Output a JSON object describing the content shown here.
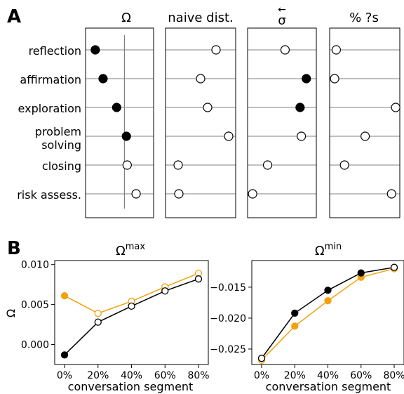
{
  "panel_labels": [
    "A",
    "B"
  ],
  "chart_data": [
    {
      "type": "scatter",
      "panel": "A",
      "categories": [
        "reflection",
        "affirmation",
        "exploration",
        "problem\nsolving",
        "closing",
        "risk assess."
      ],
      "subplots": [
        {
          "title": "Ω",
          "values": [
            -0.75,
            -0.55,
            -0.2,
            0.05,
            0.07,
            0.3
          ],
          "filled": [
            true,
            true,
            true,
            true,
            false,
            false
          ],
          "xlim": [
            -1.0,
            0.75
          ],
          "reference_x": 0.0
        },
        {
          "title": "naive dist.",
          "values": [
            0.72,
            0.5,
            0.6,
            0.9,
            0.18,
            0.19
          ],
          "filled": [
            false,
            false,
            false,
            false,
            false,
            false
          ],
          "xlim": [
            0.0,
            1.0
          ]
        },
        {
          "title": "σ",
          "title_accent": "←",
          "values": [
            0.4,
            0.57,
            0.52,
            0.53,
            0.26,
            0.14
          ],
          "filled": [
            false,
            true,
            true,
            false,
            false,
            false
          ],
          "xlim": [
            0.1,
            0.65
          ]
        },
        {
          "title": "% ?s",
          "values": [
            0.08,
            0.06,
            0.8,
            0.43,
            0.18,
            0.75
          ],
          "filled": [
            false,
            false,
            false,
            false,
            false,
            false
          ],
          "xlim": [
            0.0,
            0.85
          ]
        }
      ]
    },
    {
      "type": "line",
      "panel": "B",
      "title": "Ω",
      "title_superscript": "max",
      "x": [
        "0%",
        "20%",
        "40%",
        "60%",
        "80%"
      ],
      "xlabel": "conversation segment",
      "ylabel": "Ω",
      "ylim": [
        -0.0025,
        0.0105
      ],
      "yticks": [
        "0.000",
        "0.005",
        "0.010"
      ],
      "ytick_values": [
        0.0,
        0.005,
        0.01
      ],
      "series": [
        {
          "color": "#000000",
          "values": [
            -0.0013,
            0.0028,
            0.0048,
            0.0067,
            0.0082
          ],
          "filled": [
            true,
            false,
            false,
            false,
            false
          ]
        },
        {
          "color": "#f2a20f",
          "values": [
            0.0061,
            0.0039,
            0.0054,
            0.0072,
            0.0089
          ],
          "filled": [
            true,
            false,
            false,
            false,
            false
          ]
        }
      ]
    },
    {
      "type": "line",
      "panel": "B",
      "title": "Ω",
      "title_superscript": "min",
      "x": [
        "0%",
        "20%",
        "40%",
        "60%",
        "80%"
      ],
      "xlabel": "conversation segment",
      "ylim": [
        -0.0275,
        -0.0107
      ],
      "yticks": [
        "−0.025",
        "−0.020",
        "−0.015"
      ],
      "ytick_values": [
        -0.025,
        -0.02,
        -0.015
      ],
      "series": [
        {
          "color": "#000000",
          "values": [
            -0.0265,
            -0.0192,
            -0.0155,
            -0.0127,
            -0.0118
          ],
          "filled": [
            false,
            true,
            true,
            true,
            false
          ]
        },
        {
          "color": "#f2a20f",
          "values": [
            -0.0268,
            -0.0213,
            -0.0172,
            -0.0134,
            -0.012
          ],
          "filled": [
            false,
            true,
            true,
            true,
            false
          ]
        }
      ]
    }
  ]
}
